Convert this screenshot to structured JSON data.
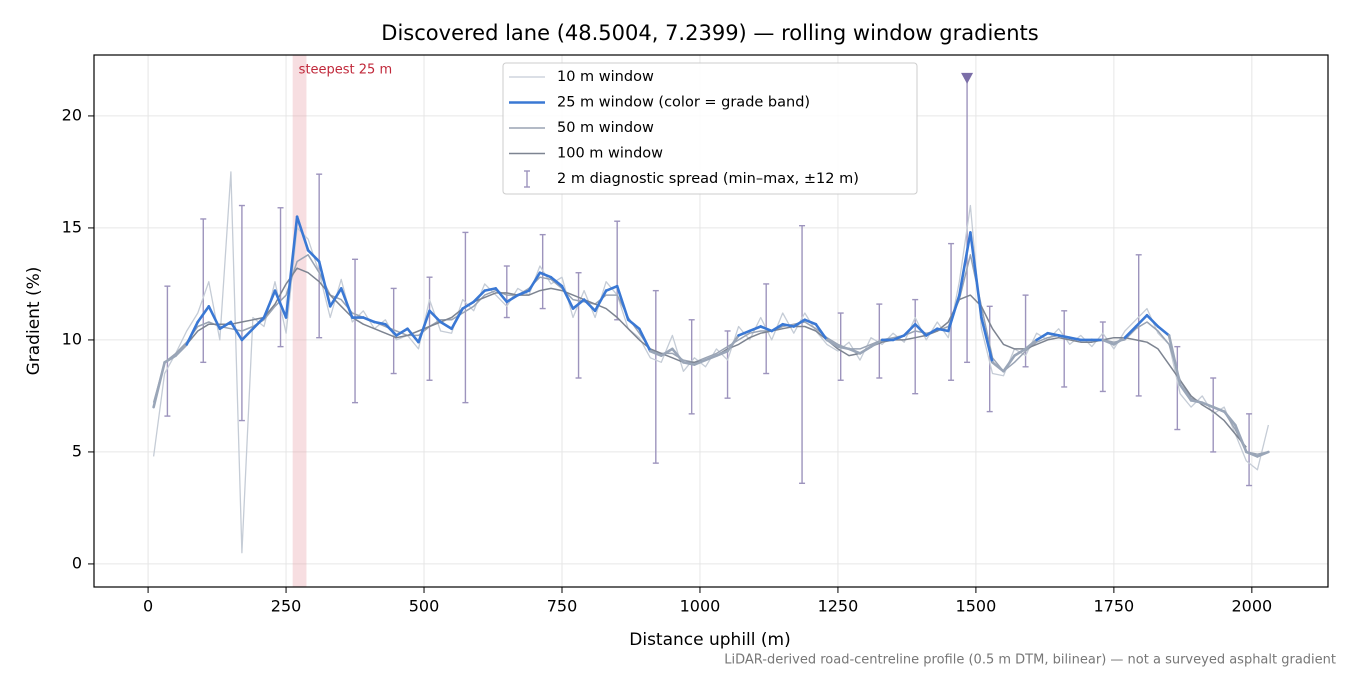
{
  "chart_data": {
    "type": "line",
    "title": "Discovered lane (48.5004, 7.2399) — rolling window gradients",
    "xlabel": "Distance uphill (m)",
    "ylabel": "Gradient (%)",
    "footnote": "LiDAR-derived road-centreline profile (0.5 m DTM, bilinear) — not a surveyed asphalt gradient",
    "xlim": [
      -98,
      2138
    ],
    "ylim": [
      -1.03,
      22.72
    ],
    "xticks": [
      0,
      250,
      500,
      750,
      1000,
      1250,
      1500,
      1750,
      2000
    ],
    "yticks": [
      0,
      5,
      10,
      15,
      20
    ],
    "grid": true,
    "legend": "upper center",
    "x": [
      10,
      30,
      50,
      70,
      90,
      110,
      130,
      150,
      170,
      190,
      210,
      230,
      250,
      270,
      290,
      310,
      330,
      350,
      370,
      390,
      410,
      430,
      450,
      470,
      490,
      510,
      530,
      550,
      570,
      590,
      610,
      630,
      650,
      670,
      690,
      710,
      730,
      750,
      770,
      790,
      810,
      830,
      850,
      870,
      890,
      910,
      930,
      950,
      970,
      990,
      1010,
      1030,
      1050,
      1070,
      1090,
      1110,
      1130,
      1150,
      1170,
      1190,
      1210,
      1230,
      1250,
      1270,
      1290,
      1310,
      1330,
      1350,
      1370,
      1390,
      1410,
      1430,
      1450,
      1470,
      1490,
      1510,
      1530,
      1550,
      1570,
      1590,
      1610,
      1630,
      1650,
      1670,
      1690,
      1710,
      1730,
      1750,
      1770,
      1790,
      1810,
      1830,
      1850,
      1870,
      1890,
      1910,
      1930,
      1950,
      1970,
      1990,
      2010,
      2030
    ],
    "series": [
      {
        "name": "10 m window",
        "color": "#c5ccd6",
        "width": 1.3,
        "values": [
          4.8,
          8.5,
          9.4,
          10.4,
          11.2,
          12.6,
          10.0,
          17.5,
          0.5,
          11.0,
          10.6,
          12.6,
          10.3,
          15.0,
          14.5,
          13.0,
          11.0,
          12.7,
          10.8,
          11.3,
          10.5,
          10.9,
          10.0,
          10.2,
          9.6,
          11.8,
          10.4,
          10.3,
          11.8,
          11.3,
          12.5,
          12.0,
          11.5,
          12.3,
          12.0,
          13.3,
          12.5,
          12.8,
          11.0,
          12.2,
          11.0,
          12.6,
          12.0,
          10.5,
          10.1,
          9.2,
          9.0,
          10.2,
          8.6,
          9.2,
          8.8,
          9.6,
          9.1,
          10.6,
          10.0,
          11.0,
          10.0,
          11.2,
          10.3,
          11.2,
          10.4,
          9.8,
          9.5,
          9.9,
          9.1,
          10.1,
          9.8,
          10.3,
          9.9,
          11.0,
          10.0,
          10.8,
          10.1,
          12.6,
          16.0,
          10.5,
          8.5,
          8.4,
          9.6,
          9.3,
          10.3,
          10.0,
          10.5,
          9.8,
          10.2,
          9.7,
          10.3,
          9.6,
          10.4,
          10.9,
          11.4,
          10.3,
          9.8,
          7.6,
          7.0,
          7.5,
          6.7,
          7.0,
          5.8,
          4.6,
          4.2,
          6.2
        ]
      },
      {
        "name": "25 m window (color = grade band)",
        "color": "#3a78d4",
        "width": 2.6,
        "band_threshold": 10,
        "band_low_color": "#9aa6b8",
        "values": [
          7.0,
          9.0,
          9.3,
          9.8,
          10.8,
          11.5,
          10.5,
          10.8,
          10.0,
          10.5,
          11.0,
          12.2,
          11.0,
          15.5,
          14.0,
          13.5,
          11.5,
          12.3,
          11.0,
          11.0,
          10.8,
          10.7,
          10.2,
          10.5,
          9.9,
          11.3,
          10.8,
          10.5,
          11.4,
          11.7,
          12.2,
          12.3,
          11.7,
          12.0,
          12.2,
          13.0,
          12.8,
          12.4,
          11.4,
          11.8,
          11.3,
          12.2,
          12.4,
          10.9,
          10.5,
          9.5,
          9.3,
          9.6,
          9.0,
          8.9,
          9.1,
          9.3,
          9.5,
          10.2,
          10.4,
          10.6,
          10.4,
          10.7,
          10.6,
          10.9,
          10.7,
          10.0,
          9.7,
          9.6,
          9.4,
          9.7,
          10.0,
          10.0,
          10.2,
          10.7,
          10.2,
          10.5,
          10.4,
          12.0,
          14.8,
          11.0,
          9.0,
          8.6,
          9.3,
          9.6,
          10.0,
          10.3,
          10.2,
          10.1,
          10.0,
          10.0,
          10.0,
          9.8,
          10.1,
          10.6,
          11.1,
          10.6,
          10.2,
          8.0,
          7.3,
          7.2,
          7.0,
          6.8,
          6.2,
          5.0,
          4.8,
          5.0
        ]
      },
      {
        "name": "50 m window",
        "color": "#9aa4b4",
        "width": 1.5,
        "values": [
          7.2,
          9.0,
          9.4,
          9.9,
          10.6,
          10.8,
          10.6,
          10.5,
          10.4,
          10.6,
          10.9,
          11.5,
          12.0,
          13.5,
          13.8,
          13.0,
          12.0,
          11.8,
          11.2,
          11.0,
          10.8,
          10.6,
          10.4,
          10.2,
          10.2,
          10.6,
          10.9,
          10.9,
          11.2,
          11.5,
          12.0,
          12.2,
          12.0,
          12.0,
          12.3,
          12.8,
          12.7,
          12.3,
          11.8,
          11.7,
          11.6,
          12.0,
          12.0,
          11.0,
          10.3,
          9.6,
          9.4,
          9.4,
          9.1,
          9.0,
          9.2,
          9.4,
          9.7,
          10.0,
          10.3,
          10.4,
          10.4,
          10.6,
          10.7,
          10.8,
          10.5,
          10.1,
          9.8,
          9.6,
          9.6,
          9.8,
          10.0,
          10.1,
          10.2,
          10.4,
          10.3,
          10.4,
          10.6,
          11.8,
          13.8,
          11.5,
          9.2,
          8.6,
          9.0,
          9.5,
          9.9,
          10.1,
          10.2,
          10.1,
          10.0,
          10.0,
          10.0,
          9.9,
          10.0,
          10.5,
          10.8,
          10.4,
          9.8,
          8.2,
          7.4,
          7.2,
          7.0,
          6.8,
          6.0,
          5.0,
          4.9,
          5.0
        ]
      },
      {
        "name": "100 m window",
        "color": "#7d8491",
        "width": 1.5,
        "values": [
          null,
          null,
          9.3,
          9.8,
          10.4,
          10.7,
          10.7,
          10.7,
          10.8,
          10.9,
          11.0,
          11.6,
          12.5,
          13.2,
          13.0,
          12.6,
          12.0,
          11.5,
          11.0,
          10.7,
          10.5,
          10.3,
          10.1,
          10.2,
          10.4,
          10.6,
          10.8,
          11.0,
          11.4,
          11.7,
          11.9,
          12.1,
          12.1,
          12.0,
          12.0,
          12.2,
          12.3,
          12.2,
          12.0,
          11.8,
          11.6,
          11.4,
          11.0,
          10.5,
          10.0,
          9.6,
          9.4,
          9.2,
          9.0,
          9.0,
          9.1,
          9.3,
          9.6,
          9.8,
          10.1,
          10.3,
          10.4,
          10.5,
          10.6,
          10.6,
          10.4,
          10.0,
          9.6,
          9.3,
          9.4,
          9.7,
          9.9,
          10.0,
          10.0,
          10.1,
          10.2,
          10.4,
          10.8,
          11.8,
          12.0,
          11.5,
          10.5,
          9.8,
          9.6,
          9.6,
          9.8,
          10.0,
          10.1,
          10.0,
          9.9,
          9.9,
          10.0,
          10.1,
          10.1,
          10.0,
          9.9,
          9.6,
          8.9,
          8.2,
          7.5,
          7.1,
          6.8,
          6.4,
          5.8,
          5.2,
          null,
          null
        ]
      }
    ],
    "spread": {
      "name": "2 m diagnostic spread (min–max, ±12 m)",
      "color": "#9d94bd",
      "x": [
        35,
        100,
        170,
        240,
        310,
        375,
        445,
        510,
        575,
        650,
        715,
        780,
        850,
        920,
        985,
        1050,
        1120,
        1185,
        1255,
        1325,
        1390,
        1455,
        1484,
        1525,
        1590,
        1660,
        1730,
        1795,
        1865,
        1930,
        1995
      ],
      "low": [
        6.6,
        9.0,
        6.4,
        9.7,
        10.1,
        7.2,
        8.5,
        8.2,
        7.2,
        11.0,
        11.4,
        8.3,
        10.9,
        4.5,
        6.7,
        7.4,
        8.5,
        3.6,
        8.2,
        8.3,
        7.6,
        8.2,
        9.0,
        6.8,
        8.8,
        7.9,
        7.7,
        7.5,
        6.0,
        5.0,
        3.5
      ],
      "high": [
        12.4,
        15.4,
        16.0,
        15.9,
        17.4,
        13.6,
        12.3,
        12.8,
        14.8,
        13.3,
        14.7,
        13.0,
        15.3,
        12.2,
        10.9,
        10.4,
        12.5,
        15.1,
        11.2,
        11.6,
        11.8,
        14.3,
        21.7,
        11.5,
        12.0,
        11.3,
        10.8,
        13.8,
        9.7,
        8.3,
        6.7
      ]
    },
    "peak_marker": {
      "x": 1484,
      "y": 21.7,
      "color": "#7b6ea8"
    },
    "highlight": {
      "label": "steepest 25 m",
      "x": [
        262,
        287
      ],
      "color": "#e8a0a8",
      "label_color": "#c0283a"
    }
  }
}
